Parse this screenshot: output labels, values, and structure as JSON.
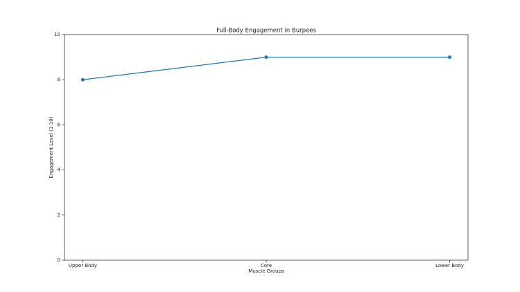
{
  "chart_data": {
    "type": "line",
    "title": "Full-Body Engagement in Burpees",
    "x_label": "Muscle Groups",
    "y_label": "Engagement Level (1-10)",
    "categories": [
      "Upper Body",
      "Core",
      "Lower Body"
    ],
    "values": [
      8,
      9,
      9
    ],
    "color": "#1f77b4",
    "ylim": [
      0,
      10
    ],
    "yticks": [
      0,
      2,
      4,
      6,
      8,
      10
    ],
    "grid": false,
    "marker": true
  }
}
